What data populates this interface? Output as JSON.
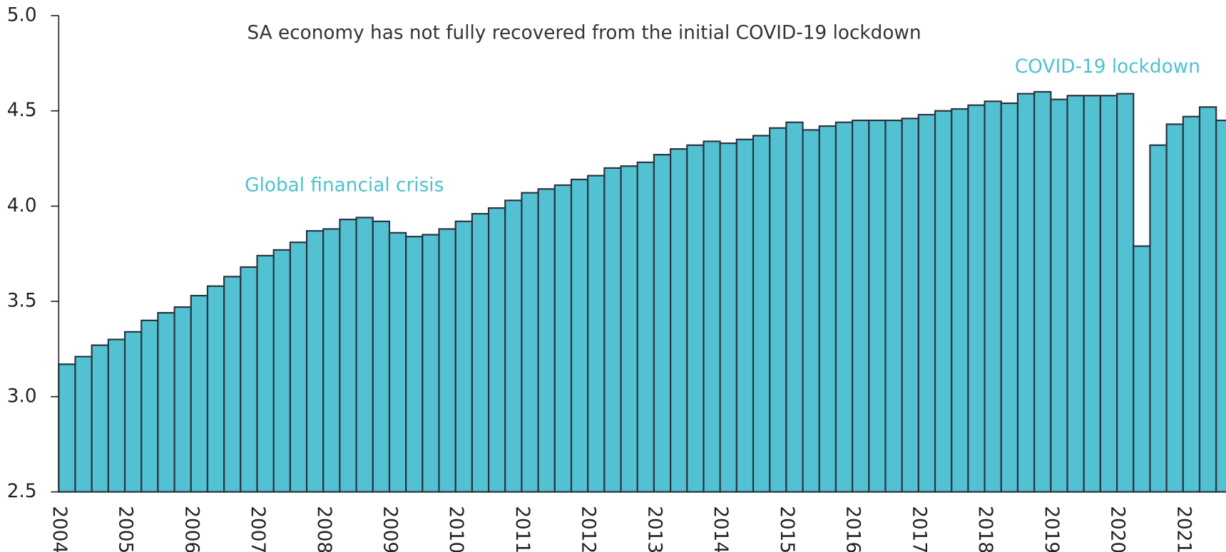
{
  "chart_data": {
    "type": "bar",
    "title": "SA economy has not fully recovered from the initial COVID-19 lockdown",
    "annotations": [
      "Global financial crisis",
      "COVID-19 lockdown"
    ],
    "categories": [
      "2004",
      null,
      null,
      null,
      "2005",
      null,
      null,
      null,
      "2006",
      null,
      null,
      null,
      "2007",
      null,
      null,
      null,
      "2008",
      null,
      null,
      null,
      "2009",
      null,
      null,
      null,
      "2010",
      null,
      null,
      null,
      "2011",
      null,
      null,
      null,
      "2012",
      null,
      null,
      null,
      "2013",
      null,
      null,
      null,
      "2014",
      null,
      null,
      null,
      "2015",
      null,
      null,
      null,
      "2016",
      null,
      null,
      null,
      "2017",
      null,
      null,
      null,
      "2018",
      null,
      null,
      null,
      "2019",
      null,
      null,
      null,
      "2020",
      null,
      null,
      null,
      "2021",
      null,
      null
    ],
    "values": [
      3.17,
      3.21,
      3.27,
      3.3,
      3.34,
      3.4,
      3.44,
      3.47,
      3.53,
      3.58,
      3.63,
      3.68,
      3.74,
      3.77,
      3.81,
      3.87,
      3.88,
      3.93,
      3.94,
      3.92,
      3.86,
      3.84,
      3.85,
      3.88,
      3.92,
      3.96,
      3.99,
      4.03,
      4.07,
      4.09,
      4.11,
      4.14,
      4.16,
      4.2,
      4.21,
      4.23,
      4.27,
      4.3,
      4.32,
      4.34,
      4.33,
      4.35,
      4.37,
      4.41,
      4.44,
      4.4,
      4.42,
      4.44,
      4.45,
      4.45,
      4.45,
      4.46,
      4.48,
      4.5,
      4.51,
      4.53,
      4.55,
      4.54,
      4.59,
      4.6,
      4.56,
      4.58,
      4.58,
      4.58,
      4.59,
      3.79,
      4.32,
      4.43,
      4.47,
      4.52,
      4.45
    ],
    "color": "#52c2d2",
    "edge_color": "#2b3340",
    "ylim": [
      2.5,
      5.0
    ],
    "yticks": [
      2.5,
      {
        "value": 3,
        "label": "3.0"
      },
      3.5,
      {
        "value": 4,
        "label": "4.0"
      },
      4.5,
      {
        "value": 5,
        "label": "5.0"
      }
    ],
    "grid": false
  }
}
